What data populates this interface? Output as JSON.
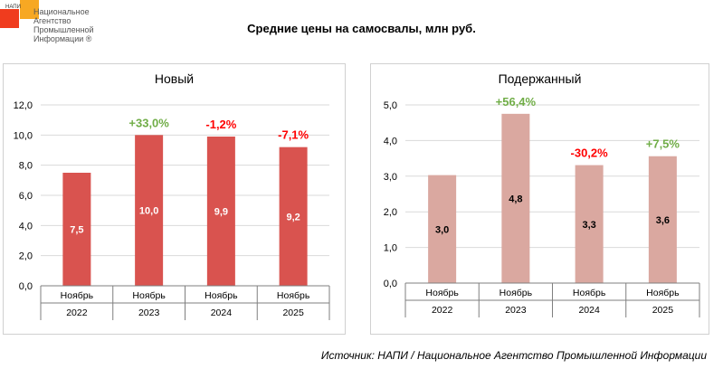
{
  "logo": {
    "small": "НАПИ",
    "lines": [
      "Национальное",
      "Агентство",
      "Промышленной",
      "Информации ®"
    ]
  },
  "title": "Средние цены на самосвалы, млн руб.",
  "source": "Источник: НАПИ / Национальное Агентство Промышленной Информации",
  "colors": {
    "new_bar": "#d9534f",
    "used_bar": "#daa8a0",
    "positive": "#70ad47",
    "negative": "#ff0000"
  },
  "chart_data": [
    {
      "type": "bar",
      "title": "Новый",
      "categories": [
        [
          "Ноябрь",
          "2022"
        ],
        [
          "Ноябрь",
          "2023"
        ],
        [
          "Ноябрь",
          "2024"
        ],
        [
          "Ноябрь",
          "2025"
        ]
      ],
      "values": [
        7.5,
        10.0,
        9.9,
        9.2
      ],
      "labels": [
        "7,5",
        "10,0",
        "9,9",
        "9,2"
      ],
      "changes": [
        "",
        "+33,0%",
        "-1,2%",
        "-7,1%"
      ],
      "change_sign": [
        0,
        1,
        -1,
        -1
      ],
      "ylim": [
        0,
        12
      ],
      "yticks": [
        "0,0",
        "2,0",
        "4,0",
        "6,0",
        "8,0",
        "10,0",
        "12,0"
      ],
      "grid": true
    },
    {
      "type": "bar",
      "title": "Подержанный",
      "categories": [
        [
          "Ноябрь",
          "2022"
        ],
        [
          "Ноябрь",
          "2023"
        ],
        [
          "Ноябрь",
          "2024"
        ],
        [
          "Ноябрь",
          "2025"
        ]
      ],
      "values": [
        3.03,
        4.75,
        3.31,
        3.56
      ],
      "labels": [
        "3,0",
        "4,8",
        "3,3",
        "3,6"
      ],
      "changes": [
        "",
        "+56,4%",
        "-30,2%",
        "+7,5%"
      ],
      "change_sign": [
        0,
        1,
        -1,
        1
      ],
      "ylim": [
        0,
        5
      ],
      "yticks": [
        "0,0",
        "1,0",
        "2,0",
        "3,0",
        "4,0",
        "5,0"
      ],
      "grid": true
    }
  ]
}
